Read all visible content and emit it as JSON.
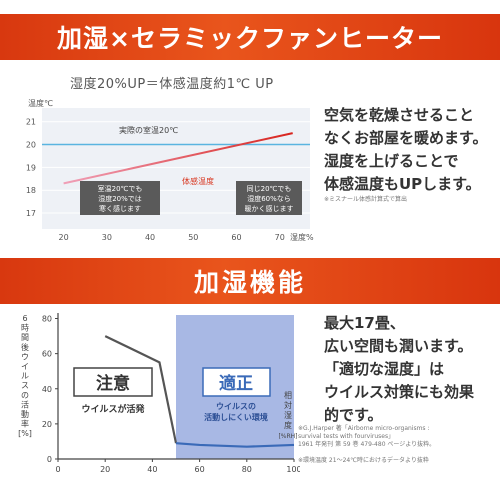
{
  "banner1": {
    "title": "加湿×セラミックファンヒーター"
  },
  "banner2": {
    "title": "加湿機能"
  },
  "chart1": {
    "subtitle": "湿度20%UP＝体感温度約1℃ UP",
    "y_axis_title": "温度℃",
    "x_axis_title": "湿度%",
    "y_ticks": [
      "21",
      "20",
      "19",
      "18",
      "17"
    ],
    "x_ticks": [
      "20",
      "30",
      "40",
      "50",
      "60",
      "70"
    ],
    "label_actual": "実際の室温20℃",
    "label_body": "体感温度",
    "callout_left": [
      "室温20℃でも",
      "湿度20%では",
      "寒く感じます"
    ],
    "callout_right": [
      "同じ20℃でも",
      "湿度60%なら",
      "暖かく感じます"
    ],
    "colors": {
      "actual": "#5ab4e0",
      "body_low": "#f0a0b8",
      "body_high": "#d8241d"
    }
  },
  "chart1_data": {
    "type": "line",
    "xlim": [
      15,
      77
    ],
    "ylim": [
      16.3,
      21.6
    ],
    "series": [
      {
        "name": "実際の室温20℃",
        "x": [
          15,
          77
        ],
        "y": [
          20,
          20
        ]
      },
      {
        "name": "体感温度",
        "x": [
          20,
          73
        ],
        "y": [
          18.3,
          20.5
        ]
      }
    ]
  },
  "side1": {
    "lines": [
      "空気を乾燥させること",
      "なくお部屋を暖めます。",
      "湿度を上げることで",
      "体感温度もUPします。"
    ],
    "note": "※ミスナール体感計算式で算出"
  },
  "chart2": {
    "y_axis_title": [
      "6",
      "時",
      "間",
      "後",
      "ウ",
      "イ",
      "ル",
      "ス",
      "の",
      "活",
      "動",
      "率",
      "[%]"
    ],
    "x_axis_title": [
      "相",
      "対",
      "湿",
      "度",
      "[%RH]"
    ],
    "y_ticks": [
      "80",
      "60",
      "40",
      "20",
      "0"
    ],
    "x_ticks": [
      "0",
      "20",
      "40",
      "60",
      "80",
      "100"
    ],
    "caution_label": "注意",
    "caution_sub": "ウイルスが活発",
    "proper_label": "適正",
    "proper_sub": [
      "ウイルスの",
      "活動しにくい環境"
    ],
    "colors": {
      "good_zone": "#a8b8e4",
      "line_bad": "#555555",
      "line_good": "#3a6ab8"
    }
  },
  "chart2_data": {
    "type": "line",
    "xlim": [
      0,
      100
    ],
    "ylim": [
      0,
      82
    ],
    "good_zone_x": [
      50,
      100
    ],
    "series": [
      {
        "x": [
          20,
          43,
          50,
          60,
          80,
          100
        ],
        "y": [
          70,
          55,
          9,
          8,
          7,
          8
        ]
      }
    ]
  },
  "side2": {
    "lines": [
      "最大17畳、",
      "広い空間も潤います。",
      "「適切な湿度」は",
      "ウイルス対策にも効果",
      "的です。"
    ],
    "note_a": [
      "※G.J.Harper 著「Airborne micro-organisms :",
      "survival tests with fourviruses」",
      "1961 年発刊 第 59 巻 479-480 ページより抜粋。"
    ],
    "note_b": "※環境温度 21～24℃時におけるデータより抜粋"
  }
}
